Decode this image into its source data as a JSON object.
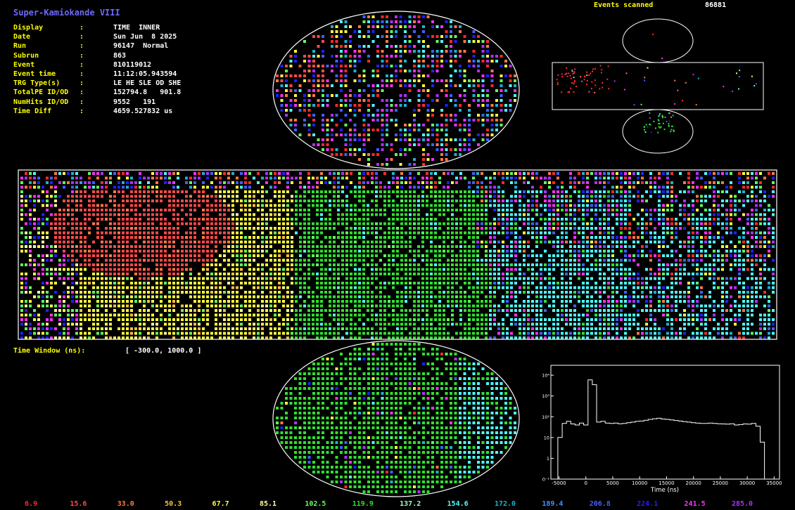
{
  "header": {
    "title": "Super-Kamiokande VIII",
    "events_scanned_label": "Events scanned",
    "events_scanned_value": "86881"
  },
  "info": [
    {
      "label": "Display",
      "colon": ":",
      "value": "TIME  INNER"
    },
    {
      "label": "Date",
      "colon": ":",
      "value": "Sun Jun  8 2025"
    },
    {
      "label": "Run",
      "colon": ":",
      "value": "96147  Normal"
    },
    {
      "label": "Subrun",
      "colon": ":",
      "value": "863"
    },
    {
      "label": "Event",
      "colon": ":",
      "value": "810119012"
    },
    {
      "label": "Event time",
      "colon": ":",
      "value": "11:12:05.943594"
    },
    {
      "label": "TRG Type(s)",
      "colon": ":",
      "value": "LE HE SLE OD SHE"
    },
    {
      "label": "TotalPE ID/OD",
      "colon": ":",
      "value": "152794.8   901.8"
    },
    {
      "label": "NumHits ID/OD",
      "colon": ":",
      "value": "9552   191"
    },
    {
      "label": "Time Diff",
      "colon": ":",
      "value": "4659.527832 us"
    }
  ],
  "time_window": {
    "label": "Time Window (ns):",
    "value": "[ -300.0, 1000.0 ]"
  },
  "legend": [
    {
      "text": "6.9",
      "color": "#ff2a2a"
    },
    {
      "text": "15.6",
      "color": "#ff4a4a"
    },
    {
      "text": "33.0",
      "color": "#ff7a45"
    },
    {
      "text": "50.3",
      "color": "#ffc040"
    },
    {
      "text": "67.7",
      "color": "#ffff40"
    },
    {
      "text": "85.1",
      "color": "#ffffa0"
    },
    {
      "text": "102.5",
      "color": "#60ff60"
    },
    {
      "text": "119.9",
      "color": "#30e030"
    },
    {
      "text": "137.2",
      "color": "#a0ffc0"
    },
    {
      "text": "154.6",
      "color": "#50ffff"
    },
    {
      "text": "172.0",
      "color": "#20b0d0"
    },
    {
      "text": "189.4",
      "color": "#4090ff"
    },
    {
      "text": "206.8",
      "color": "#4060ff"
    },
    {
      "text": "224.1",
      "color": "#2020ff"
    },
    {
      "text": "241.5",
      "color": "#ff30ff"
    },
    {
      "text": "285.0",
      "color": "#b030ff"
    }
  ],
  "histogram": {
    "type": "histogram",
    "xlabel": "Time (ns)",
    "x_ticks": [
      "-5000",
      "0",
      "5000",
      "10000",
      "15000",
      "20000",
      "25000",
      "30000",
      "35000"
    ],
    "y_ticks": [
      "10⁻¹",
      "1",
      "10",
      "10²",
      "10³",
      "10⁴"
    ],
    "y_log": true
  },
  "chart_data": {
    "type": "bar",
    "xlabel": "Time (ns)",
    "ylabel": "",
    "x_range": [
      -6500,
      36000
    ],
    "y_range": [
      0.1,
      30000
    ],
    "y_scale": "log",
    "bin_width": 800,
    "bin_edges_start": -5200,
    "values": [
      10,
      48,
      60,
      45,
      40,
      50,
      40,
      6000,
      3500,
      55,
      60,
      50,
      48,
      50,
      46,
      48,
      52,
      55,
      60,
      62,
      68,
      75,
      80,
      85,
      78,
      75,
      70,
      66,
      62,
      58,
      55,
      52,
      50,
      48,
      48,
      50,
      48,
      46,
      45,
      44,
      46,
      40,
      42,
      45,
      44,
      48,
      35,
      6
    ]
  },
  "colors": {
    "background": "#000000",
    "frame": "#ffffff",
    "title": "#6a6aff",
    "label": "#ffff00"
  }
}
